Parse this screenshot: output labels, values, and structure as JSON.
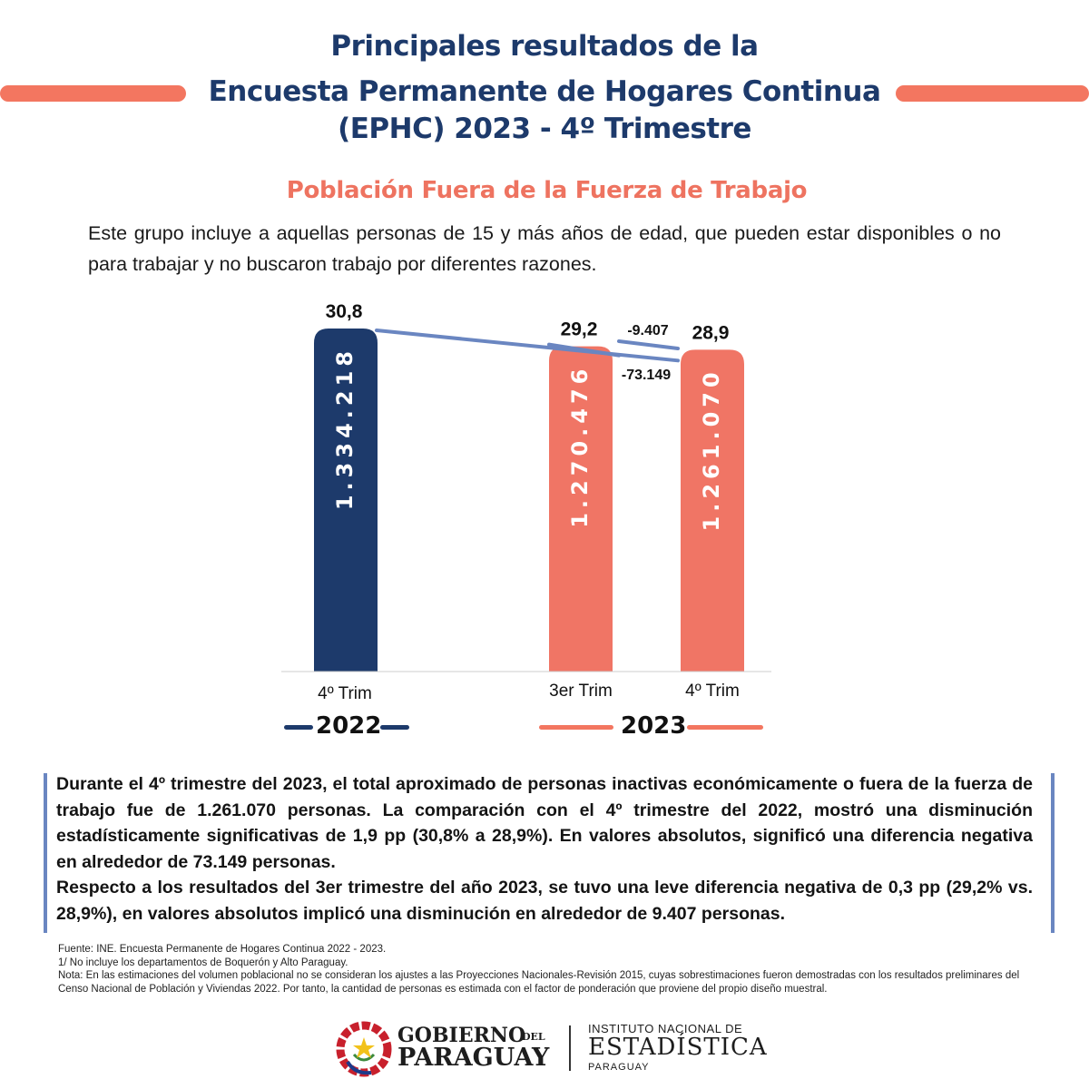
{
  "header": {
    "title_line1": "Principales resultados de la",
    "title_line2": "Encuesta Permanente de Hogares Continua",
    "title_line3": "(EPHC) 2023 - 4º Trimestre",
    "subtitle": "Población Fuera de la Fuerza de Trabajo",
    "intro": "Este grupo incluye a aquellas personas de 15 y más años de edad, que pueden estar disponibles o no para trabajar y no buscaron trabajo por diferentes razones."
  },
  "colors": {
    "navy": "#1d3a6b",
    "coral": "#f07565",
    "line": "#6a86c1",
    "accent": "#f37660"
  },
  "chart_data": {
    "type": "bar",
    "categories": [
      "4º Trim",
      "3er Trim",
      "4º Trim"
    ],
    "groups": [
      "2022",
      "2023"
    ],
    "values": [
      "1.334.218",
      "1.270.476",
      "1.261.070"
    ],
    "values_numeric": [
      1334218,
      1270476,
      1261070
    ],
    "rates": [
      "30,8",
      "29,2",
      "28,9"
    ],
    "rates_numeric": [
      30.8,
      29.2,
      28.9
    ],
    "differences": [
      {
        "label": "-73.149",
        "from": "4º Trim 2022",
        "to": "4º Trim 2023"
      },
      {
        "label": "-9.407",
        "from": "3er Trim 2023",
        "to": "4º Trim 2023"
      }
    ],
    "ylim": [
      0,
      30.8
    ]
  },
  "summary": {
    "p1": "Durante el 4º trimestre del 2023, el total aproximado de personas inactivas económicamente o fuera de la fuerza de trabajo fue de 1.261.070 personas. La comparación con el 4º trimestre del 2022, mostró una disminución estadísticamente significativas de 1,9 pp (30,8% a 28,9%). En valores absolutos, significó una diferencia negativa en alrededor de 73.149 personas.",
    "p2": "Respecto a los resultados del 3er trimestre del año 2023, se tuvo una leve diferencia negativa de 0,3 pp (29,2% vs. 28,9%), en valores absolutos implicó una disminución en alrededor de 9.407 personas."
  },
  "notes": {
    "source": "Fuente: INE. Encuesta Permanente de Hogares Continua 2022 - 2023.",
    "note1": "1/ No incluye los departamentos de Boquerón y Alto Paraguay.",
    "note2": "Nota: En las estimaciones del volumen poblacional no se consideran los ajustes a las Proyecciones Nacionales-Revisión 2015, cuyas sobrestimaciones fueron demostradas con los resultados preliminares del Censo Nacional de Población y Viviendas 2022. Por tanto, la cantidad de personas es estimada con el factor de ponderación que proviene del propio diseño muestral."
  },
  "footer": {
    "gov_line1": "GOBIERNO",
    "gov_del": "DEL",
    "gov_line2": "PARAGUAY",
    "ine_line1": "INSTITUTO NACIONAL DE",
    "ine_line2": "ESTADÍSTICA",
    "ine_line3": "PARAGUAY"
  }
}
